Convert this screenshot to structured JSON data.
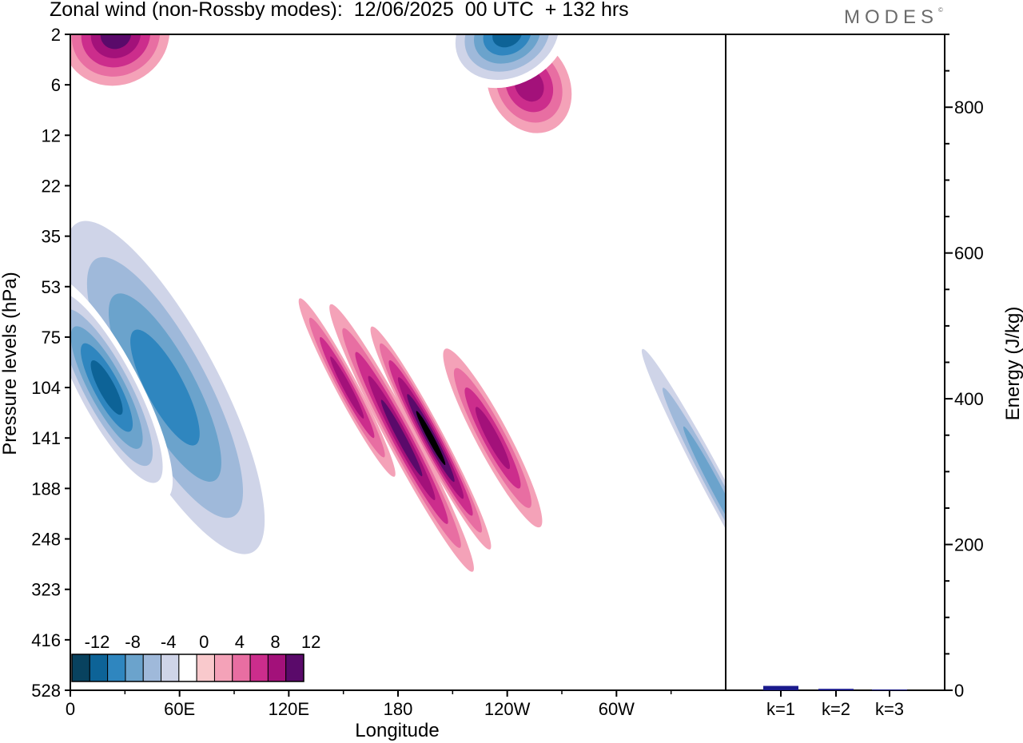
{
  "header": {
    "title": "Zonal wind (non-Rossby modes):  12/06/2025  00 UTC  + 132 hrs",
    "logo_text": "MODES",
    "logo_mark": "©"
  },
  "chart_data": [
    {
      "type": "heatmap",
      "title": "Zonal wind (non-Rossby modes):  12/06/2025  00 UTC  + 132 hrs",
      "xlabel": "Longitude",
      "ylabel": "Pressure levels (hPa)",
      "x_ticks": [
        "0",
        "60E",
        "120E",
        "180",
        "120W",
        "60W"
      ],
      "x_tick_degrees": [
        0,
        60,
        120,
        180,
        240,
        300
      ],
      "xlim_degrees": [
        0,
        360
      ],
      "y_ticks": [
        2,
        6,
        12,
        22,
        35,
        53,
        75,
        104,
        141,
        188,
        248,
        323,
        416,
        528
      ],
      "y_scale": "pressure levels, top 2 hPa to bottom 528 hPa",
      "colorbar": {
        "labels": [
          "-12",
          "-8",
          "-4",
          "0",
          "4",
          "8",
          "12"
        ],
        "levels": [
          -14,
          -12,
          -10,
          -8,
          -6,
          -4,
          -2,
          2,
          4,
          6,
          8,
          10,
          12,
          14
        ],
        "colors": [
          "#08425f",
          "#0d6397",
          "#2f86bf",
          "#6ba3cc",
          "#9fb9da",
          "#cfd4e8",
          "#ffffff",
          "#f9c9cc",
          "#f4a2b8",
          "#e86ea2",
          "#cc2d8c",
          "#a3117a",
          "#5a0a6a"
        ]
      },
      "features": [
        {
          "lon": 55,
          "level": 141,
          "value": -14,
          "rx": 22,
          "ry": 3
        },
        {
          "lon": 52,
          "level": 104,
          "value": -10,
          "rx": 36,
          "ry": 4.5
        },
        {
          "lon": 20,
          "level": 104,
          "value": -12,
          "rx": 18,
          "ry": 2.5
        },
        {
          "lon": 198,
          "level": 141,
          "value": 12,
          "rx": 7,
          "ry": 2.5
        },
        {
          "lon": 182,
          "level": 141,
          "value": 10,
          "rx": 8,
          "ry": 3
        },
        {
          "lon": 232,
          "level": 141,
          "value": 8,
          "rx": 9,
          "ry": 2
        },
        {
          "lon": 152,
          "level": 104,
          "value": 8,
          "rx": 6,
          "ry": 2
        },
        {
          "lon": 252,
          "level": 6,
          "value": 8,
          "rx": 22,
          "ry": 1
        },
        {
          "lon": 240,
          "level": 2,
          "value": -12,
          "rx": 35,
          "ry": 1
        },
        {
          "lon": 25,
          "level": 2,
          "value": 10,
          "rx": 30,
          "ry": 1
        },
        {
          "lon": 355,
          "level": 188,
          "value": -8,
          "rx": 8,
          "ry": 4
        }
      ]
    },
    {
      "type": "bar",
      "categories": [
        "k=1",
        "k=2",
        "k=3"
      ],
      "values": [
        6,
        2,
        1
      ],
      "ylabel": "Energy (J/kg)",
      "y_ticks": [
        0,
        200,
        400,
        600,
        800
      ],
      "ylim": [
        0,
        900
      ],
      "bar_color": "#1a1a8c"
    }
  ]
}
